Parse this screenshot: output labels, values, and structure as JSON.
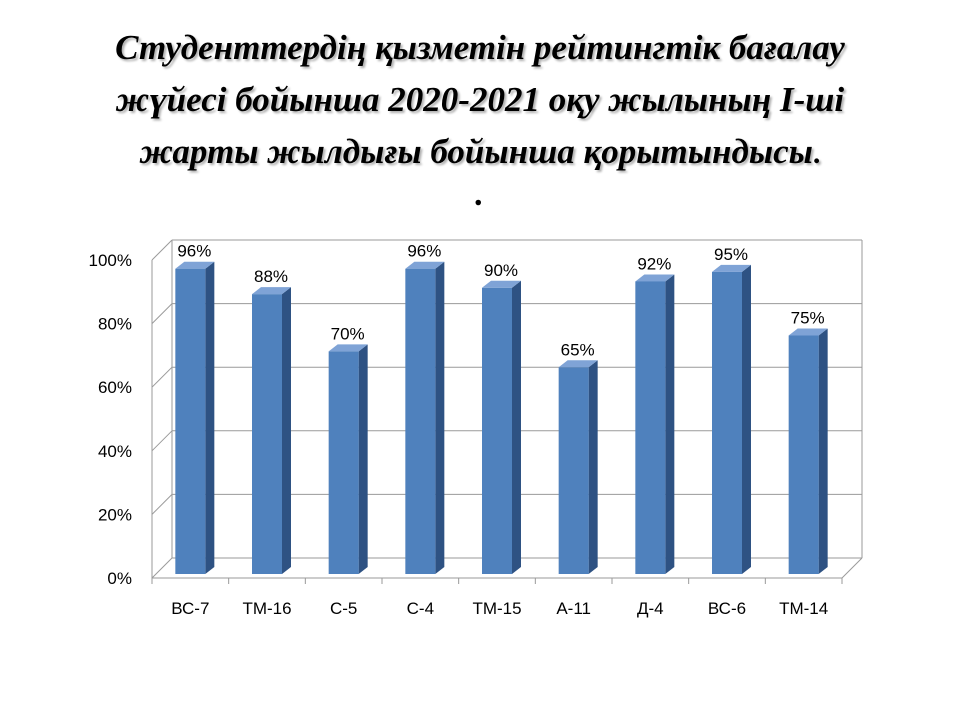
{
  "title": {
    "line1": "Студенттердің қызметін рейтингтік бағалау",
    "line2": "жүйесі бойынша 2020-2021 оқу жылының І-ші",
    "line3": "жарты жылдығы бойынша қорытындысы",
    "end_dot": ".",
    "extra_dot": "."
  },
  "chart_data": {
    "type": "bar",
    "categories": [
      "ВС-7",
      "ТМ-16",
      "С-5",
      "С-4",
      "ТМ-15",
      "А-11",
      "Д-4",
      "ВС-6",
      "ТМ-14"
    ],
    "values": [
      96,
      88,
      70,
      96,
      90,
      65,
      92,
      95,
      75
    ],
    "data_labels": [
      "96%",
      "88%",
      "70%",
      "96%",
      "90%",
      "65%",
      "92%",
      "95%",
      "75%"
    ],
    "yticks": [
      "0%",
      "20%",
      "40%",
      "60%",
      "80%",
      "100%"
    ],
    "ylim": [
      0,
      100
    ],
    "grid": true,
    "legend": "none",
    "style": "3d",
    "bar_color": "#4F81BD",
    "bar_side_color": "#2E5283",
    "bar_top_color": "#7FA3D6"
  }
}
